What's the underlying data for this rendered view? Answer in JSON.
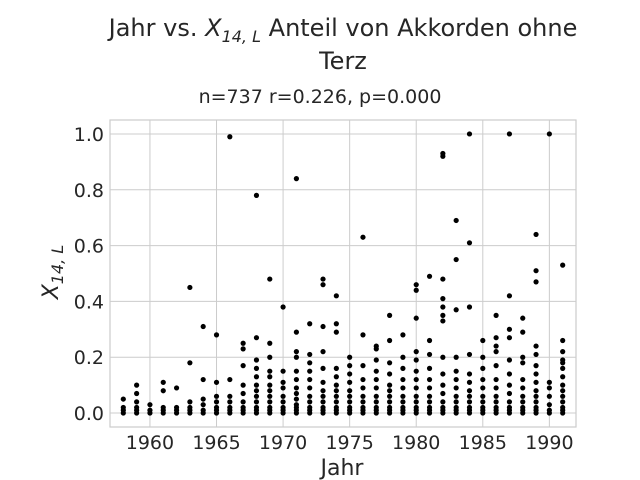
{
  "chart_data": {
    "type": "scatter",
    "title_prefix": "Jahr vs. ",
    "title_math_var": "X",
    "title_math_sub": "14, L",
    "title_rest": " Anteil von Akkorden ohne",
    "title_line2": "Terz",
    "subtitle": "n=737 r=0.226, p=0.000",
    "xlabel": "Jahr",
    "ylabel_var": "X",
    "ylabel_sub": "14, L",
    "xlim": [
      1957,
      1992
    ],
    "ylim": [
      -0.05,
      1.05
    ],
    "xticks": [
      1960,
      1965,
      1970,
      1975,
      1980,
      1985,
      1990
    ],
    "yticks": [
      0.0,
      0.2,
      0.4,
      0.6,
      0.8,
      1.0
    ],
    "ytick_labels": [
      "0.0",
      "0.2",
      "0.4",
      "0.6",
      "0.8",
      "1.0"
    ],
    "grid": true,
    "color": "#000000",
    "points": [
      [
        1958,
        0.0
      ],
      [
        1958,
        0.01
      ],
      [
        1958,
        0.02
      ],
      [
        1958,
        0.05
      ],
      [
        1959,
        0.0
      ],
      [
        1959,
        0.01
      ],
      [
        1959,
        0.02
      ],
      [
        1959,
        0.04
      ],
      [
        1959,
        0.07
      ],
      [
        1959,
        0.1
      ],
      [
        1960,
        0.0
      ],
      [
        1960,
        0.01
      ],
      [
        1960,
        0.03
      ],
      [
        1961,
        0.0
      ],
      [
        1961,
        0.01
      ],
      [
        1961,
        0.02
      ],
      [
        1961,
        0.08
      ],
      [
        1961,
        0.11
      ],
      [
        1962,
        0.0
      ],
      [
        1962,
        0.01
      ],
      [
        1962,
        0.02
      ],
      [
        1962,
        0.09
      ],
      [
        1963,
        0.0
      ],
      [
        1963,
        0.01
      ],
      [
        1963,
        0.02
      ],
      [
        1963,
        0.04
      ],
      [
        1963,
        0.18
      ],
      [
        1963,
        0.45
      ],
      [
        1964,
        0.0
      ],
      [
        1964,
        0.01
      ],
      [
        1964,
        0.03
      ],
      [
        1964,
        0.05
      ],
      [
        1964,
        0.12
      ],
      [
        1964,
        0.31
      ],
      [
        1965,
        0.0
      ],
      [
        1965,
        0.01
      ],
      [
        1965,
        0.02
      ],
      [
        1965,
        0.04
      ],
      [
        1965,
        0.06
      ],
      [
        1965,
        0.11
      ],
      [
        1965,
        0.28
      ],
      [
        1966,
        0.0
      ],
      [
        1966,
        0.01
      ],
      [
        1966,
        0.02
      ],
      [
        1966,
        0.04
      ],
      [
        1966,
        0.06
      ],
      [
        1966,
        0.12
      ],
      [
        1966,
        0.99
      ],
      [
        1967,
        0.0
      ],
      [
        1967,
        0.01
      ],
      [
        1967,
        0.02
      ],
      [
        1967,
        0.04
      ],
      [
        1967,
        0.07
      ],
      [
        1967,
        0.1
      ],
      [
        1967,
        0.17
      ],
      [
        1967,
        0.23
      ],
      [
        1967,
        0.25
      ],
      [
        1968,
        0.0
      ],
      [
        1968,
        0.01
      ],
      [
        1968,
        0.02
      ],
      [
        1968,
        0.04
      ],
      [
        1968,
        0.06
      ],
      [
        1968,
        0.08
      ],
      [
        1968,
        0.1
      ],
      [
        1968,
        0.13
      ],
      [
        1968,
        0.16
      ],
      [
        1968,
        0.19
      ],
      [
        1968,
        0.27
      ],
      [
        1968,
        0.78
      ],
      [
        1969,
        0.0
      ],
      [
        1969,
        0.01
      ],
      [
        1969,
        0.02
      ],
      [
        1969,
        0.04
      ],
      [
        1969,
        0.06
      ],
      [
        1969,
        0.08
      ],
      [
        1969,
        0.1
      ],
      [
        1969,
        0.13
      ],
      [
        1969,
        0.15
      ],
      [
        1969,
        0.2
      ],
      [
        1969,
        0.25
      ],
      [
        1969,
        0.48
      ],
      [
        1970,
        0.0
      ],
      [
        1970,
        0.01
      ],
      [
        1970,
        0.02
      ],
      [
        1970,
        0.04
      ],
      [
        1970,
        0.06
      ],
      [
        1970,
        0.09
      ],
      [
        1970,
        0.11
      ],
      [
        1970,
        0.15
      ],
      [
        1970,
        0.38
      ],
      [
        1971,
        0.0
      ],
      [
        1971,
        0.01
      ],
      [
        1971,
        0.02
      ],
      [
        1971,
        0.03
      ],
      [
        1971,
        0.05
      ],
      [
        1971,
        0.07
      ],
      [
        1971,
        0.09
      ],
      [
        1971,
        0.12
      ],
      [
        1971,
        0.15
      ],
      [
        1971,
        0.2
      ],
      [
        1971,
        0.22
      ],
      [
        1971,
        0.29
      ],
      [
        1971,
        0.84
      ],
      [
        1972,
        0.0
      ],
      [
        1972,
        0.01
      ],
      [
        1972,
        0.02
      ],
      [
        1972,
        0.04
      ],
      [
        1972,
        0.06
      ],
      [
        1972,
        0.09
      ],
      [
        1972,
        0.12
      ],
      [
        1972,
        0.15
      ],
      [
        1972,
        0.18
      ],
      [
        1972,
        0.21
      ],
      [
        1972,
        0.32
      ],
      [
        1973,
        0.0
      ],
      [
        1973,
        0.01
      ],
      [
        1973,
        0.02
      ],
      [
        1973,
        0.04
      ],
      [
        1973,
        0.06
      ],
      [
        1973,
        0.08
      ],
      [
        1973,
        0.11
      ],
      [
        1973,
        0.16
      ],
      [
        1973,
        0.22
      ],
      [
        1973,
        0.31
      ],
      [
        1973,
        0.46
      ],
      [
        1973,
        0.48
      ],
      [
        1974,
        0.0
      ],
      [
        1974,
        0.01
      ],
      [
        1974,
        0.02
      ],
      [
        1974,
        0.04
      ],
      [
        1974,
        0.06
      ],
      [
        1974,
        0.08
      ],
      [
        1974,
        0.1
      ],
      [
        1974,
        0.13
      ],
      [
        1974,
        0.16
      ],
      [
        1974,
        0.29
      ],
      [
        1974,
        0.32
      ],
      [
        1974,
        0.42
      ],
      [
        1975,
        0.0
      ],
      [
        1975,
        0.01
      ],
      [
        1975,
        0.02
      ],
      [
        1975,
        0.04
      ],
      [
        1975,
        0.06
      ],
      [
        1975,
        0.08
      ],
      [
        1975,
        0.11
      ],
      [
        1975,
        0.14
      ],
      [
        1975,
        0.17
      ],
      [
        1975,
        0.2
      ],
      [
        1976,
        0.0
      ],
      [
        1976,
        0.01
      ],
      [
        1976,
        0.02
      ],
      [
        1976,
        0.04
      ],
      [
        1976,
        0.06
      ],
      [
        1976,
        0.09
      ],
      [
        1976,
        0.12
      ],
      [
        1976,
        0.17
      ],
      [
        1976,
        0.28
      ],
      [
        1976,
        0.63
      ],
      [
        1977,
        0.0
      ],
      [
        1977,
        0.01
      ],
      [
        1977,
        0.02
      ],
      [
        1977,
        0.04
      ],
      [
        1977,
        0.06
      ],
      [
        1977,
        0.09
      ],
      [
        1977,
        0.12
      ],
      [
        1977,
        0.15
      ],
      [
        1977,
        0.19
      ],
      [
        1977,
        0.23
      ],
      [
        1977,
        0.24
      ],
      [
        1978,
        0.0
      ],
      [
        1978,
        0.01
      ],
      [
        1978,
        0.02
      ],
      [
        1978,
        0.04
      ],
      [
        1978,
        0.06
      ],
      [
        1978,
        0.08
      ],
      [
        1978,
        0.1
      ],
      [
        1978,
        0.14
      ],
      [
        1978,
        0.18
      ],
      [
        1978,
        0.26
      ],
      [
        1978,
        0.35
      ],
      [
        1979,
        0.0
      ],
      [
        1979,
        0.01
      ],
      [
        1979,
        0.02
      ],
      [
        1979,
        0.04
      ],
      [
        1979,
        0.06
      ],
      [
        1979,
        0.09
      ],
      [
        1979,
        0.12
      ],
      [
        1979,
        0.16
      ],
      [
        1979,
        0.2
      ],
      [
        1979,
        0.28
      ],
      [
        1980,
        0.0
      ],
      [
        1980,
        0.01
      ],
      [
        1980,
        0.02
      ],
      [
        1980,
        0.04
      ],
      [
        1980,
        0.06
      ],
      [
        1980,
        0.09
      ],
      [
        1980,
        0.12
      ],
      [
        1980,
        0.15
      ],
      [
        1980,
        0.19
      ],
      [
        1980,
        0.22
      ],
      [
        1980,
        0.34
      ],
      [
        1980,
        0.44
      ],
      [
        1980,
        0.46
      ],
      [
        1981,
        0.0
      ],
      [
        1981,
        0.01
      ],
      [
        1981,
        0.02
      ],
      [
        1981,
        0.04
      ],
      [
        1981,
        0.06
      ],
      [
        1981,
        0.09
      ],
      [
        1981,
        0.12
      ],
      [
        1981,
        0.16
      ],
      [
        1981,
        0.21
      ],
      [
        1981,
        0.26
      ],
      [
        1981,
        0.49
      ],
      [
        1982,
        0.0
      ],
      [
        1982,
        0.01
      ],
      [
        1982,
        0.02
      ],
      [
        1982,
        0.04
      ],
      [
        1982,
        0.07
      ],
      [
        1982,
        0.1
      ],
      [
        1982,
        0.14
      ],
      [
        1982,
        0.2
      ],
      [
        1982,
        0.33
      ],
      [
        1982,
        0.35
      ],
      [
        1982,
        0.38
      ],
      [
        1982,
        0.41
      ],
      [
        1982,
        0.48
      ],
      [
        1982,
        0.92
      ],
      [
        1982,
        0.93
      ],
      [
        1983,
        0.0
      ],
      [
        1983,
        0.01
      ],
      [
        1983,
        0.02
      ],
      [
        1983,
        0.04
      ],
      [
        1983,
        0.06
      ],
      [
        1983,
        0.09
      ],
      [
        1983,
        0.12
      ],
      [
        1983,
        0.15
      ],
      [
        1983,
        0.2
      ],
      [
        1983,
        0.37
      ],
      [
        1983,
        0.55
      ],
      [
        1983,
        0.69
      ],
      [
        1984,
        0.0
      ],
      [
        1984,
        0.01
      ],
      [
        1984,
        0.02
      ],
      [
        1984,
        0.04
      ],
      [
        1984,
        0.06
      ],
      [
        1984,
        0.08
      ],
      [
        1984,
        0.11
      ],
      [
        1984,
        0.14
      ],
      [
        1984,
        0.21
      ],
      [
        1984,
        0.38
      ],
      [
        1984,
        0.61
      ],
      [
        1984,
        1.0
      ],
      [
        1985,
        0.0
      ],
      [
        1985,
        0.01
      ],
      [
        1985,
        0.02
      ],
      [
        1985,
        0.04
      ],
      [
        1985,
        0.06
      ],
      [
        1985,
        0.09
      ],
      [
        1985,
        0.12
      ],
      [
        1985,
        0.16
      ],
      [
        1985,
        0.2
      ],
      [
        1985,
        0.26
      ],
      [
        1986,
        0.0
      ],
      [
        1986,
        0.01
      ],
      [
        1986,
        0.02
      ],
      [
        1986,
        0.04
      ],
      [
        1986,
        0.06
      ],
      [
        1986,
        0.09
      ],
      [
        1986,
        0.12
      ],
      [
        1986,
        0.17
      ],
      [
        1986,
        0.22
      ],
      [
        1986,
        0.24
      ],
      [
        1986,
        0.27
      ],
      [
        1986,
        0.35
      ],
      [
        1987,
        0.0
      ],
      [
        1987,
        0.01
      ],
      [
        1987,
        0.02
      ],
      [
        1987,
        0.04
      ],
      [
        1987,
        0.07
      ],
      [
        1987,
        0.1
      ],
      [
        1987,
        0.14
      ],
      [
        1987,
        0.19
      ],
      [
        1987,
        0.27
      ],
      [
        1987,
        0.3
      ],
      [
        1987,
        0.42
      ],
      [
        1987,
        1.0
      ],
      [
        1988,
        0.0
      ],
      [
        1988,
        0.01
      ],
      [
        1988,
        0.02
      ],
      [
        1988,
        0.04
      ],
      [
        1988,
        0.06
      ],
      [
        1988,
        0.09
      ],
      [
        1988,
        0.12
      ],
      [
        1988,
        0.18
      ],
      [
        1988,
        0.2
      ],
      [
        1988,
        0.29
      ],
      [
        1988,
        0.34
      ],
      [
        1989,
        0.0
      ],
      [
        1989,
        0.01
      ],
      [
        1989,
        0.02
      ],
      [
        1989,
        0.04
      ],
      [
        1989,
        0.06
      ],
      [
        1989,
        0.08
      ],
      [
        1989,
        0.11
      ],
      [
        1989,
        0.14
      ],
      [
        1989,
        0.17
      ],
      [
        1989,
        0.21
      ],
      [
        1989,
        0.24
      ],
      [
        1989,
        0.47
      ],
      [
        1989,
        0.51
      ],
      [
        1989,
        0.64
      ],
      [
        1990,
        0.0
      ],
      [
        1990,
        0.01
      ],
      [
        1990,
        0.03
      ],
      [
        1990,
        0.06
      ],
      [
        1990,
        0.09
      ],
      [
        1990,
        0.11
      ],
      [
        1990,
        1.0
      ],
      [
        1991,
        0.0
      ],
      [
        1991,
        0.01
      ],
      [
        1991,
        0.02
      ],
      [
        1991,
        0.04
      ],
      [
        1991,
        0.06
      ],
      [
        1991,
        0.08
      ],
      [
        1991,
        0.1
      ],
      [
        1991,
        0.13
      ],
      [
        1991,
        0.16
      ],
      [
        1991,
        0.18
      ],
      [
        1991,
        0.19
      ],
      [
        1991,
        0.22
      ],
      [
        1991,
        0.26
      ],
      [
        1991,
        0.53
      ]
    ]
  }
}
